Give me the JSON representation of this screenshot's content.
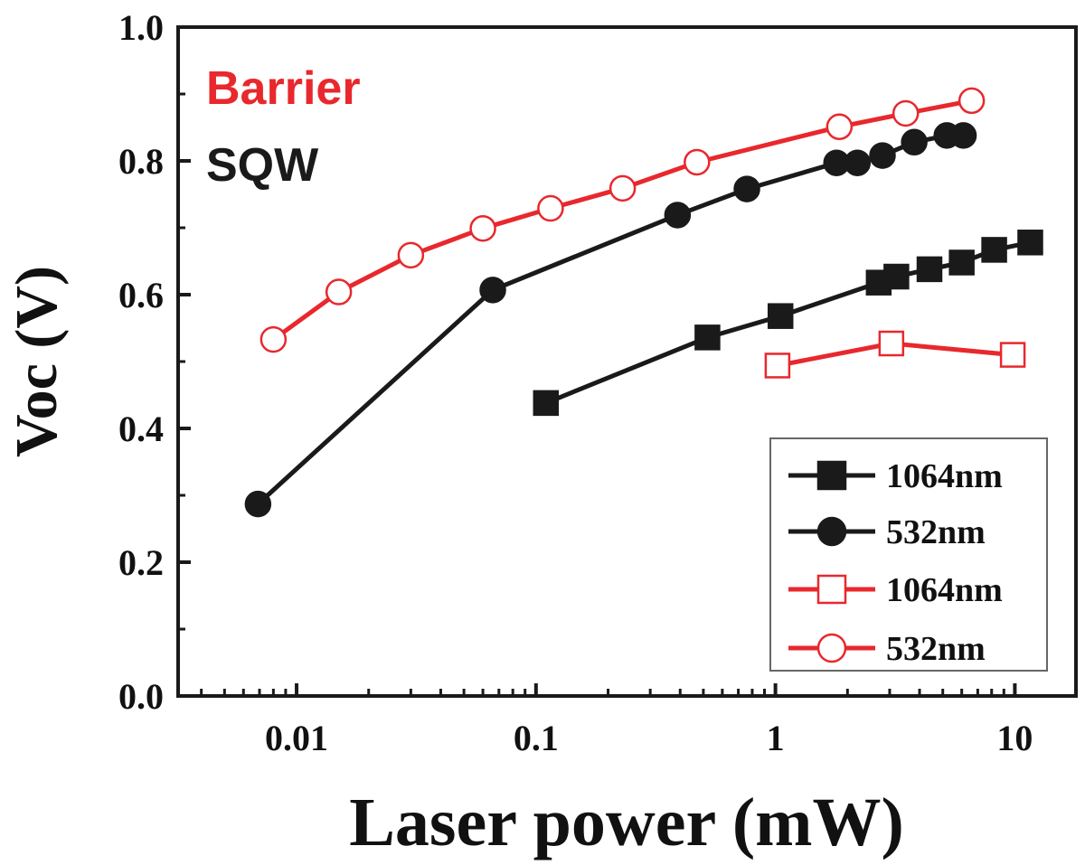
{
  "chart_data": {
    "type": "line",
    "xscale": "log",
    "xlabel": "Laser power (mW)",
    "ylabel": "Voc (V)",
    "xlim": [
      0.0032,
      18
    ],
    "ylim": [
      0.0,
      1.0
    ],
    "xticks": [
      {
        "value": 0.01,
        "label": "0.01"
      },
      {
        "value": 0.1,
        "label": "0.1"
      },
      {
        "value": 1,
        "label": "1"
      },
      {
        "value": 10,
        "label": "10"
      }
    ],
    "yticks": [
      {
        "value": 0.0,
        "label": "0.0"
      },
      {
        "value": 0.2,
        "label": "0.2"
      },
      {
        "value": 0.4,
        "label": "0.4"
      },
      {
        "value": 0.6,
        "label": "0.6"
      },
      {
        "value": 0.8,
        "label": "0.8"
      },
      {
        "value": 1.0,
        "label": "1.0"
      }
    ],
    "annotations": [
      {
        "text": "Barrier",
        "color": "#e8282d"
      },
      {
        "text": "SQW",
        "color": "#1a1a1a"
      }
    ],
    "legend_position": "bottom-right",
    "series": [
      {
        "name": "1064nm",
        "group": "SQW",
        "marker": "square",
        "filled": true,
        "color": "#1a1a1a",
        "x": [
          0.11,
          0.52,
          1.05,
          2.7,
          3.2,
          4.4,
          6.0,
          8.2,
          11.6
        ],
        "y": [
          0.438,
          0.536,
          0.568,
          0.618,
          0.627,
          0.638,
          0.648,
          0.667,
          0.678
        ]
      },
      {
        "name": "532nm",
        "group": "SQW",
        "marker": "circle",
        "filled": true,
        "color": "#1a1a1a",
        "x": [
          0.0069,
          0.066,
          0.39,
          0.76,
          1.8,
          2.2,
          2.8,
          3.8,
          5.2,
          6.1
        ],
        "y": [
          0.287,
          0.607,
          0.719,
          0.758,
          0.797,
          0.797,
          0.808,
          0.828,
          0.838,
          0.838
        ]
      },
      {
        "name": "1064nm",
        "group": "Barrier",
        "marker": "square",
        "filled": false,
        "color": "#e8282d",
        "x": [
          1.02,
          3.05,
          9.8
        ],
        "y": [
          0.494,
          0.527,
          0.51
        ]
      },
      {
        "name": "532nm",
        "group": "Barrier",
        "marker": "circle",
        "filled": false,
        "color": "#e8282d",
        "x": [
          0.008,
          0.015,
          0.03,
          0.06,
          0.115,
          0.23,
          0.47,
          1.85,
          3.5,
          6.6
        ],
        "y": [
          0.533,
          0.604,
          0.659,
          0.699,
          0.729,
          0.759,
          0.798,
          0.851,
          0.871,
          0.89
        ]
      }
    ]
  }
}
